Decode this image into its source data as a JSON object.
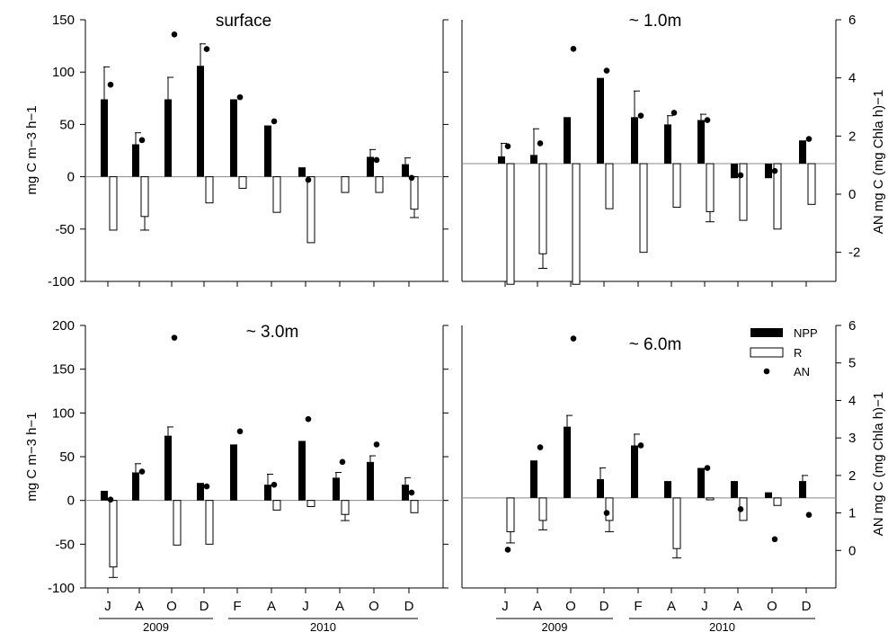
{
  "chart_data": {
    "type": "bar",
    "categories": [
      "J",
      "A",
      "O",
      "D",
      "F",
      "A",
      "J",
      "A",
      "O",
      "D"
    ],
    "year_groups": [
      {
        "label": "2009",
        "from": 0,
        "to": 3
      },
      {
        "label": "2010",
        "from": 4,
        "to": 9
      }
    ],
    "left_axis_title": "mg C m−3 h−1",
    "right_axis_title": "AN mg C (mg Chla h)−1",
    "legend": {
      "placement": "top-right",
      "entries": [
        {
          "key": "NPP",
          "label": "NPP"
        },
        {
          "key": "R",
          "label": "R"
        },
        {
          "key": "AN",
          "label": "AN"
        }
      ]
    },
    "panels": [
      {
        "title": "surface",
        "ylim": [
          -100,
          150
        ],
        "yticks": [
          -100,
          -50,
          0,
          50,
          100,
          150
        ],
        "right_axis": null,
        "series": [
          {
            "name": "NPP",
            "values": [
              74,
              31,
              74,
              106,
              74,
              49,
              9,
              0,
              19,
              12
            ],
            "error": [
              31,
              11,
              21,
              21,
              0,
              0,
              0,
              0,
              7,
              6
            ]
          },
          {
            "name": "R",
            "values": [
              -51,
              -38,
              0,
              -25,
              -11,
              -34,
              -63,
              -15,
              -15,
              -31
            ],
            "error": [
              0,
              13,
              0,
              0,
              0,
              0,
              0,
              0,
              0,
              8
            ]
          },
          {
            "name": "AN",
            "values": [
              88,
              35,
              136,
              122,
              76,
              53,
              -3,
              null,
              16,
              -1
            ]
          }
        ]
      },
      {
        "title": "~ 1.0m",
        "ylim": [
          -100,
          150
        ],
        "yticks": [],
        "right_axis": {
          "ylim": [
            -3,
            6
          ],
          "yticks": [
            -2,
            0,
            2,
            4,
            6
          ]
        },
        "series": [
          {
            "name": "NPP",
            "values": [
              1.3,
              1.35,
              2.65,
              4.0,
              2.65,
              2.4,
              2.55,
              0.55,
              0.55,
              1.85
            ],
            "error": [
              0.45,
              0.9,
              0,
              0,
              0.9,
              0.3,
              0.2,
              0,
              0,
              0
            ]
          },
          {
            "name": "R",
            "values": [
              -3.1,
              -2.05,
              -3.1,
              -0.5,
              -2.0,
              -0.45,
              -0.6,
              -0.9,
              -1.2,
              -0.35
            ],
            "error": [
              0,
              0.5,
              0,
              0,
              0,
              0,
              0.35,
              0,
              0,
              0
            ]
          },
          {
            "name": "AN",
            "values": [
              1.65,
              1.75,
              5.0,
              4.25,
              2.7,
              2.8,
              2.55,
              0.65,
              0.8,
              1.9
            ]
          }
        ]
      },
      {
        "title": "~ 3.0m",
        "ylim": [
          -100,
          200
        ],
        "yticks": [
          -100,
          -50,
          0,
          50,
          100,
          150,
          200
        ],
        "right_axis": null,
        "series": [
          {
            "name": "NPP",
            "values": [
              11,
              32,
              74,
              20,
              64,
              18,
              68,
              26,
              44,
              18
            ],
            "error": [
              0,
              10,
              10,
              0,
              0,
              12,
              0,
              6,
              7,
              8
            ]
          },
          {
            "name": "R",
            "values": [
              -76,
              0,
              -51,
              -50,
              0,
              -11,
              -7,
              -16,
              0,
              -14
            ],
            "error": [
              12,
              0,
              0,
              0,
              0,
              0,
              0,
              7,
              0,
              0
            ]
          },
          {
            "name": "AN",
            "values": [
              1,
              33,
              186,
              16,
              79,
              18,
              93,
              44,
              64,
              9
            ]
          }
        ]
      },
      {
        "title": "~ 6.0m",
        "ylim": [
          -100,
          200
        ],
        "yticks": [],
        "right_axis": {
          "ylim": [
            -1,
            6
          ],
          "yticks": [
            0,
            1,
            2,
            3,
            4,
            5,
            6
          ]
        },
        "legend": true,
        "series": [
          {
            "name": "NPP",
            "values": [
              1.4,
              2.4,
              3.3,
              1.9,
              2.8,
              1.85,
              2.2,
              1.85,
              1.55,
              1.85
            ],
            "error": [
              0,
              0,
              0.3,
              0.3,
              0.3,
              0,
              0,
              0,
              0,
              0.15
            ],
            "_note": "right-axis units, bars start at baseline 1.4"
          },
          {
            "name": "R",
            "values": [
              0.5,
              0.8,
              1.4,
              0.8,
              1.4,
              0.05,
              1.35,
              0.8,
              1.2,
              1.4
            ],
            "error": [
              0.3,
              0.25,
              0,
              0.3,
              0,
              0.25,
              0,
              0,
              0,
              0
            ]
          },
          {
            "name": "AN",
            "values": [
              0.02,
              2.75,
              5.65,
              1.0,
              2.8,
              null,
              2.2,
              1.1,
              0.3,
              0.95
            ]
          }
        ]
      }
    ]
  }
}
